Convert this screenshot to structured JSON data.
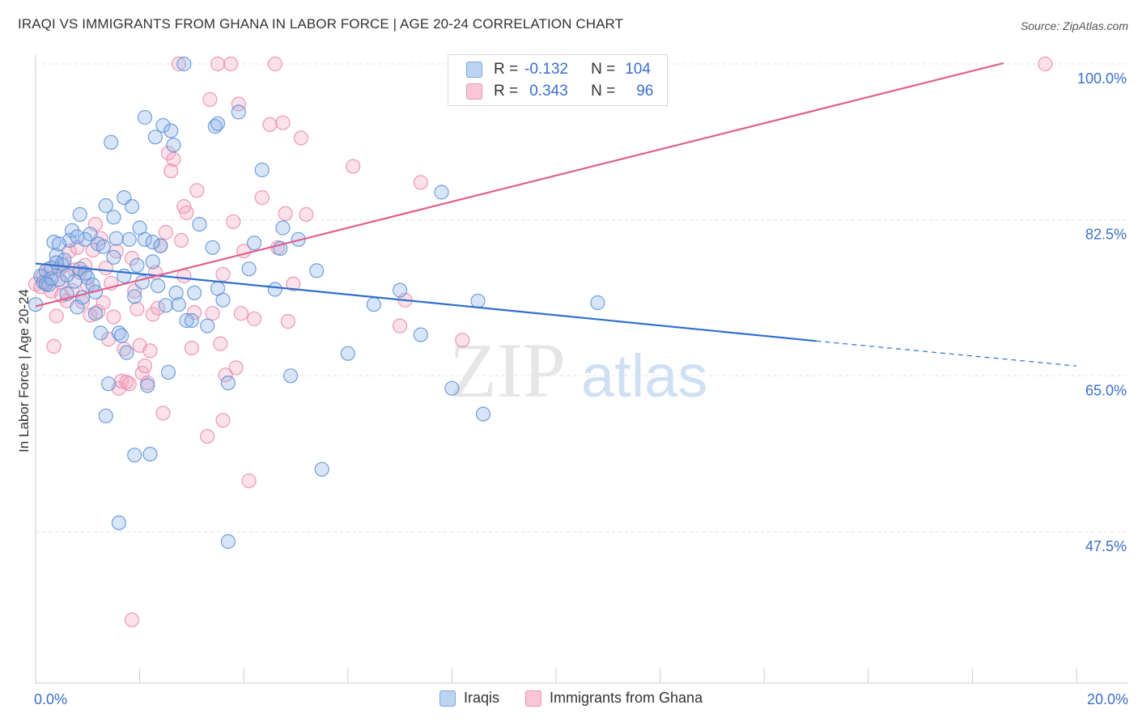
{
  "header": {
    "title": "IRAQI VS IMMIGRANTS FROM GHANA IN LABOR FORCE | AGE 20-24 CORRELATION CHART",
    "source": "Source: ZipAtlas.com"
  },
  "legend": {
    "rows": [
      {
        "r_label": "R =",
        "r_value": "-0.132",
        "n_label": "N =",
        "n_value": "104"
      },
      {
        "r_label": "R =",
        "r_value": "0.343",
        "n_label": "N =",
        "n_value": "96"
      }
    ],
    "bottom": [
      "Iraqis",
      "Immigrants from Ghana"
    ]
  },
  "watermark": {
    "zip": "ZIP",
    "atlas": "atlas"
  },
  "colors": {
    "blue_fill": "#8fb5e8",
    "blue_stroke": "#5b8fd6",
    "blue_line": "#2f6fcf",
    "pink_fill": "#f4a8c2",
    "pink_stroke": "#e98aaa",
    "pink_line": "#e0608e",
    "tick_label": "#3a6fc8",
    "grid": "#e3e3e3"
  },
  "chart_data": {
    "type": "scatter",
    "title": "IRAQI VS IMMIGRANTS FROM GHANA IN LABOR FORCE | AGE 20-24 CORRELATION CHART",
    "xlabel": "",
    "ylabel": "In Labor Force | Age 20-24",
    "xlim": [
      0,
      20
    ],
    "ylim": [
      30.5,
      101
    ],
    "x_tick_labels": [
      "0.0%",
      "20.0%"
    ],
    "y_ticks": [
      47.5,
      65.0,
      82.5,
      100.0
    ],
    "y_tick_labels": [
      "47.5%",
      "65.0%",
      "82.5%",
      "100.0%"
    ],
    "grid": true,
    "legend_position": "top-center",
    "series": [
      {
        "name": "Iraqis",
        "color": "#8fb5e8",
        "trend": {
          "x_start": 0,
          "y_start": 77.6,
          "x_solid_end": 15.0,
          "y_solid_end": 68.9,
          "x_end": 20.0,
          "y_end": 66.1
        },
        "points": [
          [
            0.0,
            73.0
          ],
          [
            0.1,
            76.2
          ],
          [
            0.15,
            75.5
          ],
          [
            0.2,
            76.8
          ],
          [
            0.25,
            75.2
          ],
          [
            0.3,
            77.1
          ],
          [
            0.35,
            80.0
          ],
          [
            0.4,
            78.5
          ],
          [
            0.45,
            75.8
          ],
          [
            0.5,
            77.5
          ],
          [
            0.55,
            78.0
          ],
          [
            0.6,
            74.2
          ],
          [
            0.65,
            80.2
          ],
          [
            0.7,
            81.3
          ],
          [
            0.75,
            75.6
          ],
          [
            0.8,
            80.6
          ],
          [
            0.85,
            83.1
          ],
          [
            0.85,
            77.0
          ],
          [
            0.9,
            73.8
          ],
          [
            0.95,
            76.5
          ],
          [
            1.0,
            76.0
          ],
          [
            1.05,
            80.9
          ],
          [
            1.1,
            75.2
          ],
          [
            1.15,
            74.4
          ],
          [
            1.2,
            79.8
          ],
          [
            1.25,
            69.8
          ],
          [
            1.3,
            79.5
          ],
          [
            1.35,
            60.5
          ],
          [
            1.35,
            84.1
          ],
          [
            1.4,
            64.1
          ],
          [
            1.45,
            91.2
          ],
          [
            1.5,
            78.3
          ],
          [
            1.5,
            82.8
          ],
          [
            1.55,
            80.4
          ],
          [
            1.6,
            69.8
          ],
          [
            1.65,
            69.5
          ],
          [
            1.7,
            85.0
          ],
          [
            1.75,
            67.6
          ],
          [
            1.8,
            80.3
          ],
          [
            1.85,
            84.0
          ],
          [
            1.9,
            56.1
          ],
          [
            1.95,
            77.4
          ],
          [
            2.0,
            81.6
          ],
          [
            2.05,
            75.5
          ],
          [
            2.1,
            80.3
          ],
          [
            2.15,
            63.9
          ],
          [
            2.2,
            56.2
          ],
          [
            2.25,
            77.8
          ],
          [
            2.3,
            91.8
          ],
          [
            2.35,
            75.1
          ],
          [
            2.4,
            79.6
          ],
          [
            2.45,
            93.1
          ],
          [
            2.5,
            72.9
          ],
          [
            2.55,
            65.4
          ],
          [
            2.6,
            92.5
          ],
          [
            2.65,
            90.9
          ],
          [
            2.7,
            74.3
          ],
          [
            2.75,
            73.0
          ],
          [
            2.85,
            100.0
          ],
          [
            2.9,
            71.2
          ],
          [
            3.0,
            71.2
          ],
          [
            3.15,
            82.0
          ],
          [
            3.3,
            70.6
          ],
          [
            3.4,
            79.4
          ],
          [
            3.45,
            93.0
          ],
          [
            3.5,
            93.3
          ],
          [
            3.5,
            74.8
          ],
          [
            3.6,
            73.5
          ],
          [
            3.7,
            64.2
          ],
          [
            3.9,
            94.6
          ],
          [
            4.1,
            77.0
          ],
          [
            4.2,
            79.9
          ],
          [
            4.35,
            88.1
          ],
          [
            4.6,
            74.7
          ],
          [
            4.7,
            79.3
          ],
          [
            4.75,
            81.6
          ],
          [
            4.9,
            65.0
          ],
          [
            5.05,
            80.3
          ],
          [
            5.4,
            76.8
          ],
          [
            5.5,
            54.5
          ],
          [
            6.0,
            67.5
          ],
          [
            6.5,
            73.0
          ],
          [
            7.0,
            74.6
          ],
          [
            7.4,
            69.6
          ],
          [
            7.8,
            85.6
          ],
          [
            8.0,
            63.6
          ],
          [
            8.5,
            73.4
          ],
          [
            8.6,
            60.7
          ],
          [
            10.8,
            73.2
          ],
          [
            1.6,
            48.5
          ],
          [
            3.7,
            46.4
          ],
          [
            2.1,
            94.0
          ],
          [
            0.2,
            75.3
          ],
          [
            0.6,
            76.3
          ],
          [
            1.15,
            72.0
          ],
          [
            0.95,
            80.3
          ],
          [
            0.3,
            75.9
          ],
          [
            1.7,
            76.2
          ],
          [
            2.25,
            80.0
          ],
          [
            3.05,
            74.3
          ],
          [
            0.45,
            79.8
          ],
          [
            0.8,
            72.7
          ],
          [
            0.4,
            77.7
          ],
          [
            1.9,
            73.9
          ]
        ]
      },
      {
        "name": "Immigrants from Ghana",
        "color": "#f4a8c2",
        "trend": {
          "x_start": 0,
          "y_start": 72.8,
          "x_solid_end": 18.6,
          "y_solid_end": 100.1,
          "x_end": 18.6,
          "y_end": 100.1
        },
        "points": [
          [
            0.0,
            75.3
          ],
          [
            0.1,
            75.0
          ],
          [
            0.15,
            76.2
          ],
          [
            0.2,
            75.5
          ],
          [
            0.25,
            77.0
          ],
          [
            0.3,
            74.5
          ],
          [
            0.35,
            68.3
          ],
          [
            0.4,
            71.7
          ],
          [
            0.45,
            76.9
          ],
          [
            0.5,
            75.5
          ],
          [
            0.55,
            77.4
          ],
          [
            0.6,
            73.4
          ],
          [
            0.65,
            79.0
          ],
          [
            0.7,
            74.6
          ],
          [
            0.75,
            76.9
          ],
          [
            0.8,
            79.4
          ],
          [
            0.85,
            76.6
          ],
          [
            0.9,
            73.3
          ],
          [
            0.95,
            77.4
          ],
          [
            1.0,
            75.1
          ],
          [
            1.05,
            71.8
          ],
          [
            1.1,
            79.1
          ],
          [
            1.15,
            82.0
          ],
          [
            1.2,
            72.2
          ],
          [
            1.25,
            80.4
          ],
          [
            1.3,
            73.2
          ],
          [
            1.35,
            77.1
          ],
          [
            1.4,
            69.1
          ],
          [
            1.45,
            75.4
          ],
          [
            1.5,
            71.6
          ],
          [
            1.55,
            79.0
          ],
          [
            1.6,
            63.6
          ],
          [
            1.65,
            64.4
          ],
          [
            1.7,
            68.0
          ],
          [
            1.75,
            64.3
          ],
          [
            1.8,
            64.1
          ],
          [
            1.85,
            78.2
          ],
          [
            1.9,
            74.5
          ],
          [
            1.95,
            72.5
          ],
          [
            2.0,
            68.4
          ],
          [
            2.05,
            65.3
          ],
          [
            2.1,
            66.1
          ],
          [
            2.15,
            64.2
          ],
          [
            2.2,
            67.8
          ],
          [
            2.25,
            71.9
          ],
          [
            2.3,
            76.6
          ],
          [
            2.35,
            72.6
          ],
          [
            2.4,
            79.6
          ],
          [
            2.45,
            60.8
          ],
          [
            2.5,
            81.1
          ],
          [
            2.55,
            90.0
          ],
          [
            2.6,
            88.0
          ],
          [
            2.65,
            89.3
          ],
          [
            2.75,
            100.0
          ],
          [
            2.8,
            80.2
          ],
          [
            2.85,
            84.0
          ],
          [
            2.9,
            83.3
          ],
          [
            3.0,
            68.1
          ],
          [
            3.05,
            72.1
          ],
          [
            3.1,
            85.8
          ],
          [
            3.3,
            58.2
          ],
          [
            3.35,
            96.0
          ],
          [
            3.4,
            72.0
          ],
          [
            3.5,
            100.0
          ],
          [
            3.55,
            68.6
          ],
          [
            3.6,
            60.0
          ],
          [
            3.65,
            65.1
          ],
          [
            3.75,
            100.0
          ],
          [
            3.8,
            82.3
          ],
          [
            3.85,
            65.9
          ],
          [
            3.9,
            95.5
          ],
          [
            3.95,
            72.0
          ],
          [
            4.0,
            79.0
          ],
          [
            4.1,
            53.2
          ],
          [
            4.2,
            71.4
          ],
          [
            4.35,
            85.0
          ],
          [
            4.5,
            93.2
          ],
          [
            4.6,
            100.0
          ],
          [
            4.65,
            79.4
          ],
          [
            4.75,
            93.4
          ],
          [
            4.8,
            83.2
          ],
          [
            4.85,
            71.1
          ],
          [
            4.95,
            75.3
          ],
          [
            5.1,
            91.7
          ],
          [
            5.2,
            83.1
          ],
          [
            6.1,
            88.5
          ],
          [
            7.0,
            70.6
          ],
          [
            7.1,
            73.5
          ],
          [
            7.4,
            86.7
          ],
          [
            8.2,
            69.0
          ],
          [
            1.85,
            37.6
          ],
          [
            0.5,
            74.0
          ],
          [
            2.85,
            76.2
          ],
          [
            3.6,
            76.4
          ],
          [
            9.0,
            100.0
          ],
          [
            19.4,
            100.0
          ]
        ]
      }
    ]
  }
}
